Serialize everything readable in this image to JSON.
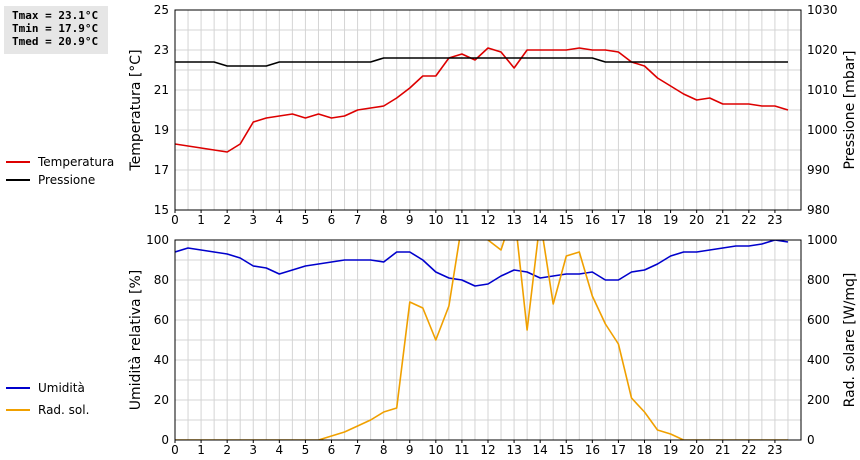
{
  "stats": {
    "tmax": "Tmax = 23.1°C",
    "tmin": "Tmin = 17.9°C",
    "tmed": "Tmed = 20.9°C"
  },
  "chart_data": [
    {
      "type": "line",
      "x_ticks": [
        0,
        1,
        2,
        3,
        4,
        5,
        6,
        7,
        8,
        9,
        10,
        11,
        12,
        13,
        14,
        15,
        16,
        17,
        18,
        19,
        20,
        21,
        22,
        23
      ],
      "grid": true,
      "ylabel_left": "Temperatura [°C]",
      "ylabel_right": "Pressione [mbar]",
      "ylim_left": [
        15,
        25
      ],
      "ylim_right": [
        980,
        1030
      ],
      "yticks_left": [
        15,
        17,
        19,
        21,
        23,
        25
      ],
      "yticks_right": [
        980,
        990,
        1000,
        1010,
        1020,
        1030
      ],
      "legend_placement": "left",
      "series": [
        {
          "name": "Temperatura",
          "axis": "left",
          "color": "#dd0000",
          "x": [
            0,
            0.5,
            1,
            1.5,
            2,
            2.5,
            3,
            3.5,
            4,
            4.5,
            5,
            5.5,
            6,
            6.5,
            7,
            7.5,
            8,
            8.5,
            9,
            9.5,
            10,
            10.5,
            11,
            11.5,
            12,
            12.5,
            13,
            13.5,
            14,
            14.5,
            15,
            15.5,
            16,
            16.5,
            17,
            17.5,
            18,
            18.5,
            19,
            19.5,
            20,
            20.5,
            21,
            21.5,
            22,
            22.5,
            23,
            23.5
          ],
          "values": [
            18.3,
            18.2,
            18.1,
            18.0,
            17.9,
            18.3,
            19.4,
            19.6,
            19.7,
            19.8,
            19.6,
            19.8,
            19.6,
            19.7,
            20.0,
            20.1,
            20.2,
            20.6,
            21.1,
            21.7,
            21.7,
            22.6,
            22.8,
            22.5,
            23.1,
            22.9,
            22.1,
            23.0,
            23.0,
            23.0,
            23.0,
            23.1,
            23.0,
            23.0,
            22.9,
            22.4,
            22.2,
            21.6,
            21.2,
            20.8,
            20.5,
            20.6,
            20.3,
            20.3,
            20.3,
            20.2,
            20.2,
            20.0
          ]
        },
        {
          "name": "Pressione",
          "axis": "right",
          "color": "#000000",
          "x": [
            0,
            0.5,
            1,
            1.5,
            2,
            2.5,
            3,
            3.5,
            4,
            4.5,
            5,
            5.5,
            6,
            6.5,
            7,
            7.5,
            8,
            8.5,
            9,
            9.5,
            10,
            10.5,
            11,
            11.5,
            12,
            12.5,
            13,
            13.5,
            14,
            14.5,
            15,
            15.5,
            16,
            16.5,
            17,
            17.5,
            18,
            18.5,
            19,
            19.5,
            20,
            20.5,
            21,
            21.5,
            22,
            22.5,
            23,
            23.5
          ],
          "values": [
            1017,
            1017,
            1017,
            1017,
            1016,
            1016,
            1016,
            1016,
            1017,
            1017,
            1017,
            1017,
            1017,
            1017,
            1017,
            1017,
            1018,
            1018,
            1018,
            1018,
            1018,
            1018,
            1018,
            1018,
            1018,
            1018,
            1018,
            1018,
            1018,
            1018,
            1018,
            1018,
            1018,
            1017,
            1017,
            1017,
            1017,
            1017,
            1017,
            1017,
            1017,
            1017,
            1017,
            1017,
            1017,
            1017,
            1017,
            1017
          ]
        }
      ]
    },
    {
      "type": "line",
      "x_ticks": [
        0,
        1,
        2,
        3,
        4,
        5,
        6,
        7,
        8,
        9,
        10,
        11,
        12,
        13,
        14,
        15,
        16,
        17,
        18,
        19,
        20,
        21,
        22,
        23
      ],
      "grid": true,
      "ylabel_left": "Umidità relativa [%]",
      "ylabel_right": "Rad. solare [W/mq]",
      "ylim_left": [
        0,
        100
      ],
      "ylim_right": [
        0,
        1000
      ],
      "yticks_left": [
        0,
        20,
        40,
        60,
        80,
        100
      ],
      "yticks_right": [
        0,
        200,
        400,
        600,
        800,
        1000
      ],
      "legend_placement": "left",
      "series": [
        {
          "name": "Umidità",
          "axis": "left",
          "color": "#0000cc",
          "x": [
            0,
            0.5,
            1,
            1.5,
            2,
            2.5,
            3,
            3.5,
            4,
            4.5,
            5,
            5.5,
            6,
            6.5,
            7,
            7.5,
            8,
            8.5,
            9,
            9.5,
            10,
            10.5,
            11,
            11.5,
            12,
            12.5,
            13,
            13.5,
            14,
            14.5,
            15,
            15.5,
            16,
            16.5,
            17,
            17.5,
            18,
            18.5,
            19,
            19.5,
            20,
            20.5,
            21,
            21.5,
            22,
            22.5,
            23,
            23.5
          ],
          "values": [
            94,
            96,
            95,
            94,
            93,
            91,
            87,
            86,
            83,
            85,
            87,
            88,
            89,
            90,
            90,
            90,
            89,
            94,
            94,
            90,
            84,
            81,
            80,
            77,
            78,
            82,
            85,
            84,
            81,
            82,
            83,
            83,
            84,
            80,
            80,
            84,
            85,
            88,
            92,
            94,
            94,
            95,
            96,
            97,
            97,
            98,
            100,
            99
          ]
        },
        {
          "name": "Rad. sol.",
          "axis": "right",
          "color": "#f0a000",
          "x": [
            0,
            0.5,
            1,
            1.5,
            2,
            2.5,
            3,
            3.5,
            4,
            4.5,
            5,
            5.5,
            6,
            6.5,
            7,
            7.5,
            8,
            8.5,
            9,
            9.5,
            10,
            10.5,
            11,
            11.5,
            12,
            12.5,
            13,
            13.5,
            14,
            14.5,
            15,
            15.5,
            16,
            16.5,
            17,
            17.5,
            18,
            18.5,
            19,
            19.5,
            20,
            20.5,
            21,
            21.5,
            22,
            22.5,
            23,
            23.5
          ],
          "values": [
            0,
            0,
            0,
            0,
            0,
            0,
            0,
            0,
            0,
            0,
            0,
            0,
            20,
            40,
            70,
            100,
            140,
            160,
            690,
            660,
            500,
            670,
            1080,
            1060,
            1000,
            950,
            1150,
            550,
            1100,
            680,
            920,
            940,
            720,
            580,
            480,
            210,
            140,
            50,
            30,
            0,
            0,
            0,
            0,
            0,
            0,
            0,
            0,
            0
          ]
        }
      ]
    }
  ]
}
